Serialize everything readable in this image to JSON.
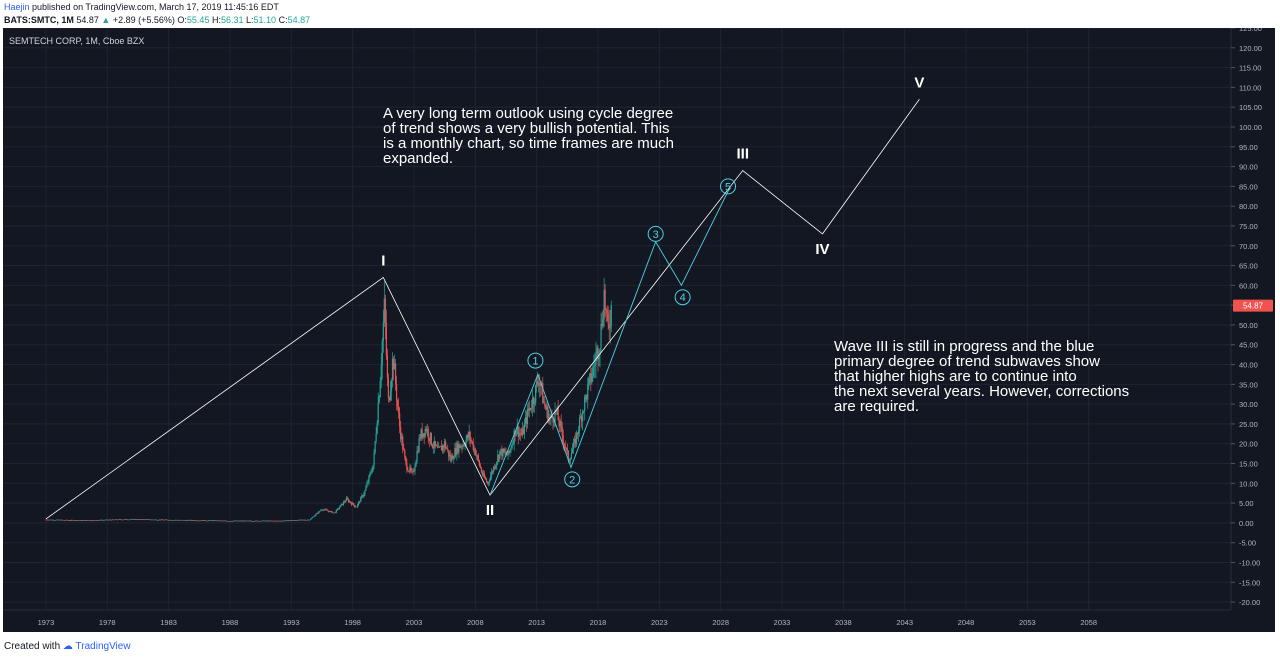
{
  "header": {
    "author": "Haejin",
    "published": "published on TradingView.com, March 17, 2019 11:45:16 EDT",
    "symbol": "BATS:SMTC, 1M",
    "last": "54.87",
    "change_arrow": "▲",
    "change": "+2.89 (+5.56%)",
    "o_label": "O:",
    "o_val": "55.45",
    "h_label": "H:",
    "h_val": "56.31",
    "l_label": "L:",
    "l_val": "51.10",
    "c_label": "C:",
    "c_val": "54.87"
  },
  "chart_title": "SEMTECH CORP, 1M, Cboe BZX",
  "price_label": "54.87",
  "annotations": {
    "top_note": [
      "A very long term outlook using cycle degree",
      "of trend shows a very bullish potential. This",
      "is a monthly chart, so time frames are much",
      "expanded."
    ],
    "right_note": [
      "Wave III is still in progress and the blue",
      "primary degree of trend subwaves show",
      "that higher highs are to continue into",
      "the next several years. However, corrections",
      "are required."
    ]
  },
  "footer": {
    "created": "Created with",
    "brand": "TradingView"
  },
  "colors": {
    "background": "#131722",
    "grid": "#1f2432",
    "axis_text": "#b2b5be",
    "up_candle": "#26a69a",
    "down_candle": "#ef5350",
    "wave_line": "#ffffff",
    "subwave": "#4dd0e1",
    "price_badge": "#ef5350"
  },
  "chart_data": {
    "type": "candlestick",
    "title": "SEMTECH CORP, 1M, Cboe BZX",
    "x_axis": {
      "type": "year",
      "range": [
        1969.5,
        2069.6
      ],
      "ticks": [
        1973,
        1978,
        1983,
        1988,
        1993,
        1998,
        2003,
        2008,
        2013,
        2018,
        2023,
        2028,
        2033,
        2038,
        2043,
        2048,
        2053,
        2058
      ]
    },
    "y_axis": {
      "side": "right",
      "range": [
        -22,
        125
      ],
      "step": 5,
      "min_tick": -20,
      "max_tick": 125
    },
    "last_price": 54.87,
    "price_path": [
      [
        1973,
        0.8
      ],
      [
        1976,
        0.6
      ],
      [
        1980,
        0.9
      ],
      [
        1984,
        0.7
      ],
      [
        1988,
        0.5
      ],
      [
        1992,
        0.5
      ],
      [
        1994.5,
        0.8
      ],
      [
        1995.5,
        3.5
      ],
      [
        1996.5,
        2.5
      ],
      [
        1997.5,
        6
      ],
      [
        1998.3,
        4
      ],
      [
        1999,
        8
      ],
      [
        1999.7,
        15
      ],
      [
        2000.2,
        35
      ],
      [
        2000.6,
        55
      ],
      [
        2000.9,
        30
      ],
      [
        2001.3,
        42
      ],
      [
        2001.8,
        25
      ],
      [
        2002.3,
        15
      ],
      [
        2002.9,
        12
      ],
      [
        2003.5,
        22
      ],
      [
        2004,
        24
      ],
      [
        2004.5,
        20
      ],
      [
        2005,
        18
      ],
      [
        2005.5,
        20
      ],
      [
        2006,
        16
      ],
      [
        2006.5,
        19
      ],
      [
        2007,
        20
      ],
      [
        2007.5,
        22
      ],
      [
        2008,
        18
      ],
      [
        2008.6,
        12
      ],
      [
        2009,
        10
      ],
      [
        2009.5,
        14
      ],
      [
        2010,
        18
      ],
      [
        2010.7,
        17
      ],
      [
        2011.3,
        24
      ],
      [
        2011.8,
        22
      ],
      [
        2012.3,
        28
      ],
      [
        2012.8,
        32
      ],
      [
        2013.2,
        37
      ],
      [
        2013.6,
        30
      ],
      [
        2014.1,
        26
      ],
      [
        2014.6,
        28
      ],
      [
        2015.1,
        22
      ],
      [
        2015.6,
        16
      ],
      [
        2016.1,
        20
      ],
      [
        2016.7,
        28
      ],
      [
        2017.2,
        34
      ],
      [
        2017.7,
        40
      ],
      [
        2018.2,
        47
      ],
      [
        2018.5,
        58
      ],
      [
        2018.8,
        48
      ],
      [
        2019.1,
        54.87
      ]
    ],
    "cycle_waves": {
      "labels": [
        "I",
        "II",
        "III",
        "IV",
        "V"
      ],
      "points": [
        [
          1973,
          1
        ],
        [
          2000.5,
          62
        ],
        [
          2009.2,
          7
        ],
        [
          2029.8,
          89
        ],
        [
          2036.3,
          73
        ],
        [
          2044.2,
          107
        ]
      ]
    },
    "primary_subwaves": {
      "labels": [
        "1",
        "2",
        "3",
        "4",
        "5"
      ],
      "points": [
        [
          2009.2,
          7
        ],
        [
          2013.1,
          37.5
        ],
        [
          2015.8,
          14
        ],
        [
          2022.7,
          71
        ],
        [
          2024.8,
          60
        ],
        [
          2028.8,
          85
        ]
      ],
      "label_positions": [
        [
          2012.9,
          41
        ],
        [
          2015.9,
          11
        ],
        [
          2022.7,
          73
        ],
        [
          2024.9,
          57
        ],
        [
          2028.6,
          85
        ]
      ]
    }
  }
}
